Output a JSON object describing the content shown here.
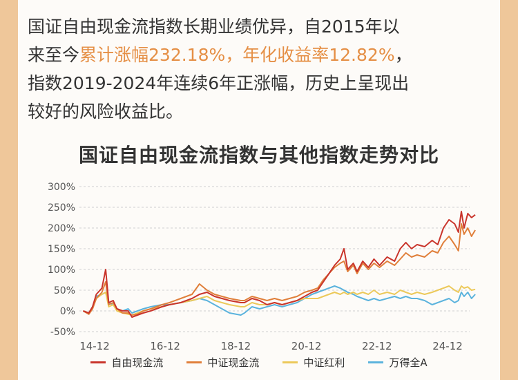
{
  "intro": {
    "line1": "国证自由现金流指数长期业绩优异，自2015年以",
    "line2_pre": "来至今",
    "line2_highlight": "累计涨幅232.18%，年化收益率12.82%",
    "line2_post": "，",
    "line3": "指数2019-2024年连续6年正涨幅，历史上呈现出",
    "line4": "较好的风险收益比。"
  },
  "chart_data": {
    "type": "line",
    "title": "国证自由现金流指数与其他指数走势对比",
    "xlabel": "",
    "ylabel": "",
    "x_ticks": [
      "14-12",
      "16-12",
      "18-12",
      "20-12",
      "22-12",
      "24-12"
    ],
    "ylim": [
      -50,
      300
    ],
    "y_ticks": [
      "300%",
      "250%",
      "200%",
      "150%",
      "100%",
      "50%",
      "0%",
      "-50%"
    ],
    "grid": true,
    "legend_position": "bottom",
    "x_range": [
      2014.6,
      2025.0
    ],
    "series": [
      {
        "name": "自由现金流",
        "color": "#c9342b",
        "points": [
          [
            2014.7,
            0
          ],
          [
            2014.85,
            -5
          ],
          [
            2014.95,
            10
          ],
          [
            2015.05,
            40
          ],
          [
            2015.2,
            55
          ],
          [
            2015.3,
            100
          ],
          [
            2015.38,
            20
          ],
          [
            2015.5,
            25
          ],
          [
            2015.6,
            5
          ],
          [
            2015.75,
            0
          ],
          [
            2015.9,
            0
          ],
          [
            2016.0,
            -15
          ],
          [
            2016.15,
            -10
          ],
          [
            2016.3,
            -5
          ],
          [
            2016.5,
            0
          ],
          [
            2016.8,
            10
          ],
          [
            2017.0,
            15
          ],
          [
            2017.3,
            20
          ],
          [
            2017.6,
            30
          ],
          [
            2017.8,
            40
          ],
          [
            2018.0,
            45
          ],
          [
            2018.2,
            35
          ],
          [
            2018.4,
            30
          ],
          [
            2018.6,
            25
          ],
          [
            2018.9,
            20
          ],
          [
            2019.0,
            20
          ],
          [
            2019.2,
            30
          ],
          [
            2019.4,
            25
          ],
          [
            2019.6,
            15
          ],
          [
            2019.8,
            20
          ],
          [
            2020.0,
            15
          ],
          [
            2020.2,
            20
          ],
          [
            2020.4,
            25
          ],
          [
            2020.6,
            35
          ],
          [
            2020.8,
            45
          ],
          [
            2020.95,
            50
          ],
          [
            2021.1,
            70
          ],
          [
            2021.25,
            90
          ],
          [
            2021.4,
            110
          ],
          [
            2021.55,
            125
          ],
          [
            2021.65,
            150
          ],
          [
            2021.75,
            100
          ],
          [
            2021.9,
            115
          ],
          [
            2022.0,
            95
          ],
          [
            2022.15,
            120
          ],
          [
            2022.3,
            105
          ],
          [
            2022.45,
            125
          ],
          [
            2022.6,
            110
          ],
          [
            2022.8,
            130
          ],
          [
            2023.0,
            120
          ],
          [
            2023.15,
            150
          ],
          [
            2023.3,
            165
          ],
          [
            2023.45,
            150
          ],
          [
            2023.6,
            160
          ],
          [
            2023.8,
            155
          ],
          [
            2024.0,
            170
          ],
          [
            2024.15,
            160
          ],
          [
            2024.3,
            200
          ],
          [
            2024.45,
            220
          ],
          [
            2024.6,
            210
          ],
          [
            2024.7,
            190
          ],
          [
            2024.78,
            240
          ],
          [
            2024.85,
            200
          ],
          [
            2024.95,
            235
          ],
          [
            2025.05,
            225
          ],
          [
            2025.15,
            232
          ]
        ]
      },
      {
        "name": "中证现金流",
        "color": "#e07f3a",
        "points": [
          [
            2014.7,
            0
          ],
          [
            2014.85,
            -8
          ],
          [
            2014.95,
            5
          ],
          [
            2015.05,
            30
          ],
          [
            2015.2,
            45
          ],
          [
            2015.3,
            70
          ],
          [
            2015.38,
            15
          ],
          [
            2015.5,
            20
          ],
          [
            2015.6,
            5
          ],
          [
            2015.75,
            -5
          ],
          [
            2015.9,
            -5
          ],
          [
            2016.0,
            -10
          ],
          [
            2016.15,
            -8
          ],
          [
            2016.3,
            0
          ],
          [
            2016.5,
            5
          ],
          [
            2016.8,
            15
          ],
          [
            2017.0,
            20
          ],
          [
            2017.3,
            30
          ],
          [
            2017.6,
            40
          ],
          [
            2017.8,
            65
          ],
          [
            2018.0,
            50
          ],
          [
            2018.2,
            40
          ],
          [
            2018.4,
            35
          ],
          [
            2018.6,
            30
          ],
          [
            2018.9,
            25
          ],
          [
            2019.0,
            25
          ],
          [
            2019.2,
            35
          ],
          [
            2019.4,
            30
          ],
          [
            2019.6,
            25
          ],
          [
            2019.8,
            30
          ],
          [
            2020.0,
            25
          ],
          [
            2020.2,
            30
          ],
          [
            2020.4,
            35
          ],
          [
            2020.6,
            45
          ],
          [
            2020.8,
            50
          ],
          [
            2020.95,
            55
          ],
          [
            2021.1,
            75
          ],
          [
            2021.25,
            90
          ],
          [
            2021.4,
            105
          ],
          [
            2021.55,
            115
          ],
          [
            2021.65,
            120
          ],
          [
            2021.75,
            95
          ],
          [
            2021.9,
            110
          ],
          [
            2022.0,
            90
          ],
          [
            2022.15,
            115
          ],
          [
            2022.3,
            100
          ],
          [
            2022.45,
            115
          ],
          [
            2022.6,
            105
          ],
          [
            2022.8,
            120
          ],
          [
            2023.0,
            110
          ],
          [
            2023.15,
            125
          ],
          [
            2023.3,
            140
          ],
          [
            2023.45,
            130
          ],
          [
            2023.6,
            135
          ],
          [
            2023.8,
            130
          ],
          [
            2024.0,
            145
          ],
          [
            2024.15,
            140
          ],
          [
            2024.3,
            165
          ],
          [
            2024.45,
            180
          ],
          [
            2024.6,
            160
          ],
          [
            2024.7,
            145
          ],
          [
            2024.78,
            210
          ],
          [
            2024.85,
            185
          ],
          [
            2024.95,
            200
          ],
          [
            2025.05,
            180
          ],
          [
            2025.15,
            195
          ]
        ]
      },
      {
        "name": "中证红利",
        "color": "#ecc95a",
        "points": [
          [
            2014.7,
            0
          ],
          [
            2014.85,
            -5
          ],
          [
            2014.95,
            8
          ],
          [
            2015.05,
            30
          ],
          [
            2015.2,
            40
          ],
          [
            2015.3,
            45
          ],
          [
            2015.38,
            10
          ],
          [
            2015.5,
            15
          ],
          [
            2015.6,
            0
          ],
          [
            2015.75,
            -5
          ],
          [
            2015.9,
            -8
          ],
          [
            2016.0,
            -10
          ],
          [
            2016.15,
            -5
          ],
          [
            2016.3,
            0
          ],
          [
            2016.5,
            5
          ],
          [
            2016.8,
            10
          ],
          [
            2017.0,
            15
          ],
          [
            2017.3,
            20
          ],
          [
            2017.6,
            25
          ],
          [
            2017.8,
            30
          ],
          [
            2018.0,
            35
          ],
          [
            2018.2,
            25
          ],
          [
            2018.4,
            20
          ],
          [
            2018.6,
            15
          ],
          [
            2018.9,
            10
          ],
          [
            2019.0,
            10
          ],
          [
            2019.2,
            20
          ],
          [
            2019.4,
            15
          ],
          [
            2019.6,
            15
          ],
          [
            2019.8,
            20
          ],
          [
            2020.0,
            15
          ],
          [
            2020.2,
            20
          ],
          [
            2020.4,
            25
          ],
          [
            2020.6,
            30
          ],
          [
            2020.8,
            30
          ],
          [
            2020.95,
            30
          ],
          [
            2021.1,
            35
          ],
          [
            2021.25,
            40
          ],
          [
            2021.4,
            45
          ],
          [
            2021.55,
            40
          ],
          [
            2021.65,
            45
          ],
          [
            2021.75,
            40
          ],
          [
            2021.9,
            45
          ],
          [
            2022.0,
            40
          ],
          [
            2022.15,
            45
          ],
          [
            2022.3,
            40
          ],
          [
            2022.45,
            50
          ],
          [
            2022.6,
            40
          ],
          [
            2022.8,
            45
          ],
          [
            2023.0,
            40
          ],
          [
            2023.15,
            50
          ],
          [
            2023.3,
            45
          ],
          [
            2023.45,
            40
          ],
          [
            2023.6,
            45
          ],
          [
            2023.8,
            40
          ],
          [
            2024.0,
            45
          ],
          [
            2024.15,
            50
          ],
          [
            2024.3,
            55
          ],
          [
            2024.45,
            60
          ],
          [
            2024.6,
            50
          ],
          [
            2024.7,
            45
          ],
          [
            2024.78,
            60
          ],
          [
            2024.85,
            55
          ],
          [
            2024.95,
            58
          ],
          [
            2025.05,
            50
          ],
          [
            2025.15,
            52
          ]
        ]
      },
      {
        "name": "万得全A",
        "color": "#5bb3dd",
        "points": [
          [
            2014.7,
            0
          ],
          [
            2014.85,
            -5
          ],
          [
            2014.95,
            10
          ],
          [
            2015.05,
            35
          ],
          [
            2015.2,
            40
          ],
          [
            2015.3,
            45
          ],
          [
            2015.38,
            20
          ],
          [
            2015.5,
            15
          ],
          [
            2015.6,
            5
          ],
          [
            2015.75,
            0
          ],
          [
            2015.9,
            5
          ],
          [
            2016.0,
            -5
          ],
          [
            2016.15,
            0
          ],
          [
            2016.3,
            5
          ],
          [
            2016.5,
            10
          ],
          [
            2016.8,
            15
          ],
          [
            2017.0,
            15
          ],
          [
            2017.3,
            20
          ],
          [
            2017.6,
            25
          ],
          [
            2017.8,
            30
          ],
          [
            2018.0,
            25
          ],
          [
            2018.2,
            15
          ],
          [
            2018.4,
            5
          ],
          [
            2018.6,
            -5
          ],
          [
            2018.9,
            -10
          ],
          [
            2019.0,
            -5
          ],
          [
            2019.2,
            10
          ],
          [
            2019.4,
            5
          ],
          [
            2019.6,
            10
          ],
          [
            2019.8,
            15
          ],
          [
            2020.0,
            10
          ],
          [
            2020.2,
            15
          ],
          [
            2020.4,
            20
          ],
          [
            2020.6,
            30
          ],
          [
            2020.8,
            40
          ],
          [
            2020.95,
            45
          ],
          [
            2021.1,
            50
          ],
          [
            2021.25,
            55
          ],
          [
            2021.4,
            60
          ],
          [
            2021.55,
            55
          ],
          [
            2021.65,
            50
          ],
          [
            2021.75,
            45
          ],
          [
            2021.9,
            40
          ],
          [
            2022.0,
            35
          ],
          [
            2022.15,
            30
          ],
          [
            2022.3,
            25
          ],
          [
            2022.45,
            30
          ],
          [
            2022.6,
            25
          ],
          [
            2022.8,
            30
          ],
          [
            2023.0,
            35
          ],
          [
            2023.15,
            30
          ],
          [
            2023.3,
            35
          ],
          [
            2023.45,
            30
          ],
          [
            2023.6,
            30
          ],
          [
            2023.8,
            25
          ],
          [
            2024.0,
            15
          ],
          [
            2024.15,
            20
          ],
          [
            2024.3,
            25
          ],
          [
            2024.45,
            30
          ],
          [
            2024.6,
            20
          ],
          [
            2024.7,
            25
          ],
          [
            2024.78,
            45
          ],
          [
            2024.85,
            35
          ],
          [
            2024.95,
            45
          ],
          [
            2025.05,
            30
          ],
          [
            2025.15,
            40
          ]
        ]
      }
    ]
  }
}
